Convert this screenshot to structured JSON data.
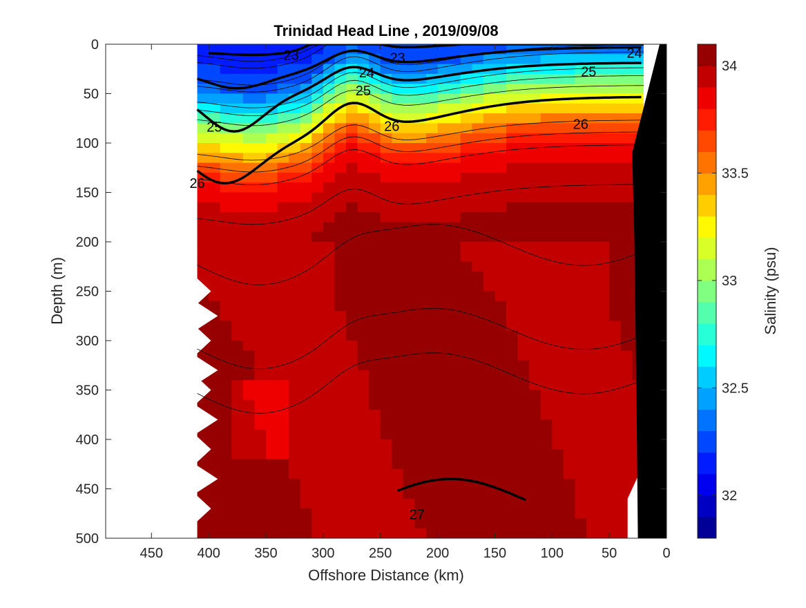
{
  "chart_data": {
    "type": "heatmap",
    "title": "Trinidad Head Line , 2019/09/08",
    "xlabel": "Offshore Distance (km)",
    "ylabel": "Depth (m)",
    "colorbar_label": "Salinity (psu)",
    "xlim": [
      490,
      0
    ],
    "ylim": [
      0,
      500
    ],
    "x_ticks": [
      450,
      400,
      350,
      300,
      250,
      200,
      150,
      100,
      50,
      0
    ],
    "y_ticks": [
      0,
      50,
      100,
      150,
      200,
      250,
      300,
      350,
      400,
      450,
      500
    ],
    "color_range": [
      31.8,
      34.1
    ],
    "color_ticks": [
      32,
      32.5,
      33,
      33.5,
      34
    ],
    "colormap": "jet",
    "data_extent_km": [
      410,
      20
    ],
    "mixed_layer_salinity_profile": {
      "depth_m": [
        0,
        20,
        40,
        60,
        80,
        100,
        120,
        140,
        160,
        180,
        200,
        300,
        400,
        500
      ],
      "salinity_psu": [
        32.1,
        32.2,
        32.3,
        32.6,
        33.0,
        33.3,
        33.6,
        33.8,
        33.9,
        33.95,
        34.0,
        34.05,
        34.05,
        34.05
      ]
    },
    "density_contours": [
      {
        "sigma": "23",
        "label_positions_km": [
          [
            328,
            10
          ],
          [
            235,
            13
          ]
        ]
      },
      {
        "sigma": "24",
        "label_positions_km": [
          [
            262,
            28
          ],
          [
            28,
            8
          ]
        ]
      },
      {
        "sigma": "25",
        "label_positions_km": [
          [
            395,
            83
          ],
          [
            265,
            46
          ],
          [
            68,
            27
          ]
        ]
      },
      {
        "sigma": "26",
        "label_positions_km": [
          [
            410,
            140
          ],
          [
            240,
            82
          ],
          [
            75,
            80
          ]
        ]
      },
      {
        "sigma": "27",
        "label_positions_km": [
          [
            218,
            475
          ]
        ]
      }
    ]
  }
}
